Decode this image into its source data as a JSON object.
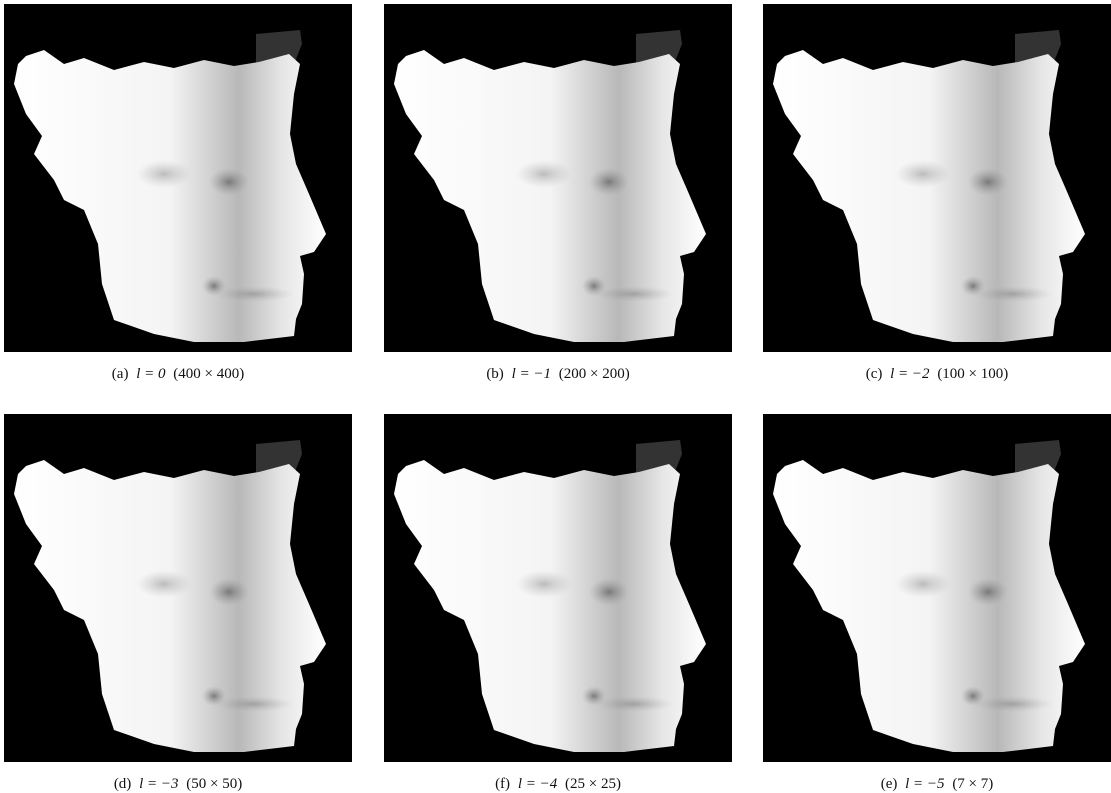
{
  "panels": [
    {
      "label": "(a)",
      "math": "l = 0",
      "size": "(400 × 400)"
    },
    {
      "label": "(b)",
      "math": "l = −1",
      "size": "(200 × 200)"
    },
    {
      "label": "(c)",
      "math": "l = −2",
      "size": "(100 × 100)"
    },
    {
      "label": "(d)",
      "math": "l = −3",
      "size": "(50 × 50)"
    },
    {
      "label": "(f)",
      "math": "l = −4",
      "size": "(25 × 25)"
    },
    {
      "label": "(e)",
      "math": "l = −5",
      "size": "(7 × 7)"
    }
  ]
}
